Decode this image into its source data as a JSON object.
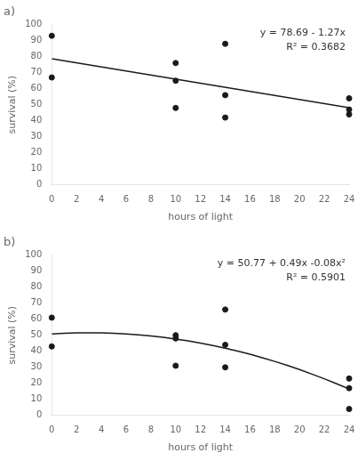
{
  "chart_data": [
    {
      "type": "scatter",
      "title": "a)",
      "xlabel": "hours of light",
      "ylabel": "survival (%)",
      "annotations": [
        "y = 78.69 - 1.27x",
        "R² = 0.3682"
      ],
      "series": [
        {
          "type": "scatter",
          "color": "#1a1a1a",
          "marker": "circle",
          "x": [
            0,
            0,
            10,
            10,
            10,
            14,
            14,
            14,
            24,
            24,
            24
          ],
          "values": [
            93,
            67,
            76,
            65,
            48,
            88,
            56,
            42,
            54,
            47,
            44
          ]
        },
        {
          "type": "line",
          "color": "#1a1a1a",
          "line_style": "solid",
          "x": [
            0,
            24
          ],
          "values": [
            78.69,
            48.21
          ]
        }
      ],
      "xlim": [
        0,
        24
      ],
      "ylim": [
        0,
        100
      ],
      "xticks": [
        0,
        2,
        4,
        6,
        8,
        10,
        12,
        14,
        16,
        18,
        20,
        22,
        24
      ],
      "yticks": [
        0,
        10,
        20,
        30,
        40,
        50,
        60,
        70,
        80,
        90,
        100
      ],
      "grid": false,
      "legend": false
    },
    {
      "type": "scatter",
      "title": "b)",
      "xlabel": "hours of light",
      "ylabel": "survival (%)",
      "annotations": [
        "y = 50.77 + 0.49x -0.08x²",
        "R² = 0.5901"
      ],
      "series": [
        {
          "type": "scatter",
          "color": "#1a1a1a",
          "marker": "circle",
          "x": [
            0,
            0,
            10,
            10,
            10,
            14,
            14,
            14,
            24,
            24,
            24
          ],
          "values": [
            61,
            43,
            50,
            48,
            31,
            66,
            44,
            30,
            23,
            17,
            4
          ]
        },
        {
          "type": "line",
          "color": "#1a1a1a",
          "line_style": "solid",
          "x": [
            0,
            1,
            2,
            3,
            4,
            5,
            6,
            7,
            8,
            9,
            10,
            11,
            12,
            13,
            14,
            15,
            16,
            17,
            18,
            19,
            20,
            21,
            22,
            23,
            24
          ],
          "values": [
            50.77,
            51.18,
            51.43,
            51.52,
            51.45,
            51.22,
            50.83,
            50.28,
            49.57,
            48.7,
            47.67,
            46.48,
            45.13,
            43.62,
            41.95,
            40.12,
            38.13,
            35.98,
            33.67,
            31.2,
            28.57,
            25.78,
            22.83,
            19.72,
            16.45
          ]
        }
      ],
      "xlim": [
        0,
        24
      ],
      "ylim": [
        0,
        100
      ],
      "xticks": [
        0,
        2,
        4,
        6,
        8,
        10,
        12,
        14,
        16,
        18,
        20,
        22,
        24
      ],
      "yticks": [
        0,
        10,
        20,
        30,
        40,
        50,
        60,
        70,
        80,
        90,
        100
      ],
      "grid": false,
      "legend": false
    }
  ]
}
